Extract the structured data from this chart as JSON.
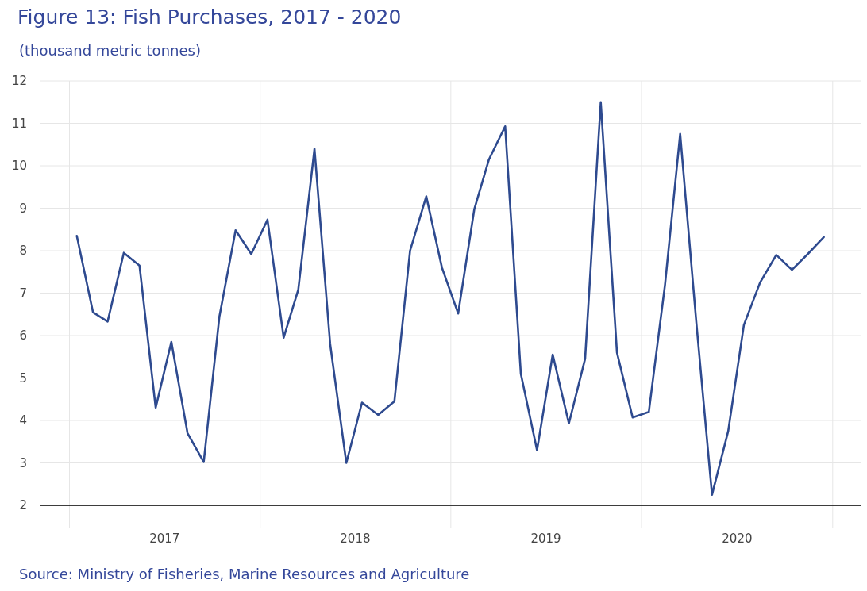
{
  "chart_data": {
    "type": "line",
    "title": "Figure 13: Fish Purchases, 2017 - 2020",
    "subtitle": "(thousand metric tonnes)",
    "annotations": [
      "Source: Ministry of Fisheries, Marine Resources and Agriculture"
    ],
    "x": [
      "2017-01-15",
      "2017-02-15",
      "2017-03-15",
      "2017-04-15",
      "2017-05-15",
      "2017-06-15",
      "2017-07-15",
      "2017-08-15",
      "2017-09-15",
      "2017-10-15",
      "2017-11-15",
      "2017-12-15",
      "2018-01-15",
      "2018-02-15",
      "2018-03-15",
      "2018-04-15",
      "2018-05-15",
      "2018-06-15",
      "2018-07-15",
      "2018-08-15",
      "2018-09-15",
      "2018-10-15",
      "2018-11-15",
      "2018-12-15",
      "2019-01-15",
      "2019-02-15",
      "2019-03-15",
      "2019-04-15",
      "2019-05-15",
      "2019-06-15",
      "2019-07-15",
      "2019-08-15",
      "2019-09-15",
      "2019-10-15",
      "2019-11-15",
      "2019-12-15",
      "2020-01-15",
      "2020-02-15",
      "2020-03-15",
      "2020-04-15",
      "2020-05-15",
      "2020-06-15",
      "2020-07-15",
      "2020-08-15",
      "2020-09-15",
      "2020-10-15",
      "2020-11-15",
      "2020-12-15"
    ],
    "series": [
      {
        "color": "#2e4a8f",
        "values": [
          8.35,
          6.55,
          6.33,
          7.95,
          7.65,
          4.3,
          5.85,
          3.7,
          3.02,
          6.45,
          8.48,
          7.92,
          8.73,
          5.95,
          7.08,
          10.4,
          5.8,
          3.0,
          4.42,
          4.13,
          4.45,
          8.0,
          9.28,
          7.6,
          6.52,
          8.98,
          10.15,
          10.93,
          5.1,
          3.3,
          5.55,
          3.93,
          5.45,
          11.5,
          5.6,
          4.07,
          4.2,
          7.2,
          10.75,
          6.3,
          2.25,
          3.75,
          6.25,
          7.25,
          7.9,
          7.55,
          7.93,
          8.32
        ]
      }
    ],
    "xlim": [
      "2016-11-05",
      "2021-02-25"
    ],
    "xticks": [
      {
        "value": "2017-01-01",
        "label": null
      },
      {
        "value": "2017-07-02",
        "label": "2017"
      },
      {
        "value": "2018-01-01",
        "label": null
      },
      {
        "value": "2018-07-02",
        "label": "2018"
      },
      {
        "value": "2019-01-01",
        "label": null
      },
      {
        "value": "2019-07-02",
        "label": "2019"
      },
      {
        "value": "2020-01-01",
        "label": null
      },
      {
        "value": "2020-07-02",
        "label": "2020"
      },
      {
        "value": "2021-01-01",
        "label": null
      }
    ],
    "ylim": [
      2,
      12
    ],
    "yticks": [
      2,
      3,
      4,
      5,
      6,
      7,
      8,
      9,
      10,
      11,
      12
    ],
    "grid": true,
    "line_style": "solid"
  }
}
